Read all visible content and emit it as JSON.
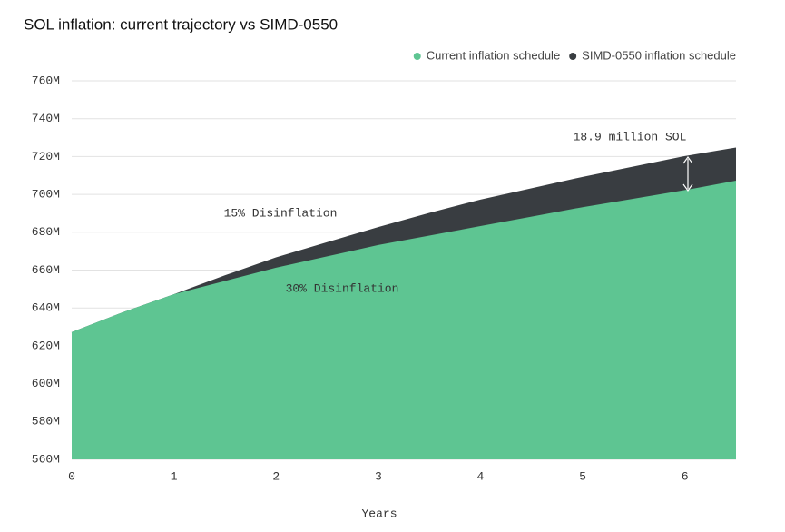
{
  "chart_data": {
    "type": "area",
    "title": "SOL inflation: current trajectory vs SIMD-0550",
    "x_label": "Years",
    "x": [
      0,
      0.5,
      1,
      1.5,
      2,
      2.5,
      3,
      3.5,
      4,
      4.5,
      5,
      5.5,
      6,
      6.5
    ],
    "series": [
      {
        "name": "Current inflation schedule",
        "color": "#5ec592",
        "values": [
          627000000,
          637500000,
          647000000,
          654000000,
          661000000,
          667000000,
          673000000,
          678000000,
          683000000,
          688000000,
          693000000,
          697500000,
          702000000,
          707000000
        ]
      },
      {
        "name": "SIMD-0550 inflation schedule",
        "color": "#393d41",
        "values": [
          627000000,
          637500000,
          647000000,
          657000000,
          666500000,
          674500000,
          682500000,
          690000000,
          697000000,
          703000000,
          709000000,
          714500000,
          720000000,
          724500000
        ]
      }
    ],
    "xlim": [
      0,
      6.5
    ],
    "xticks": [
      0,
      1,
      2,
      3,
      4,
      5,
      6
    ],
    "ylim": [
      560000000,
      760000000
    ],
    "yticks": [
      {
        "value": 560000000,
        "label": "560M"
      },
      {
        "value": 580000000,
        "label": "580M"
      },
      {
        "value": 600000000,
        "label": "600M"
      },
      {
        "value": 620000000,
        "label": "620M"
      },
      {
        "value": 640000000,
        "label": "640M"
      },
      {
        "value": 660000000,
        "label": "660M"
      },
      {
        "value": 680000000,
        "label": "680M"
      },
      {
        "value": 700000000,
        "label": "700M"
      },
      {
        "value": 720000000,
        "label": "720M"
      },
      {
        "value": 740000000,
        "label": "740M"
      },
      {
        "value": 760000000,
        "label": "760M"
      }
    ],
    "grid": true,
    "legend": "top-right",
    "annotations": [
      "18.9 million SOL",
      "15% Disinflation",
      "30% Disinflation"
    ]
  }
}
